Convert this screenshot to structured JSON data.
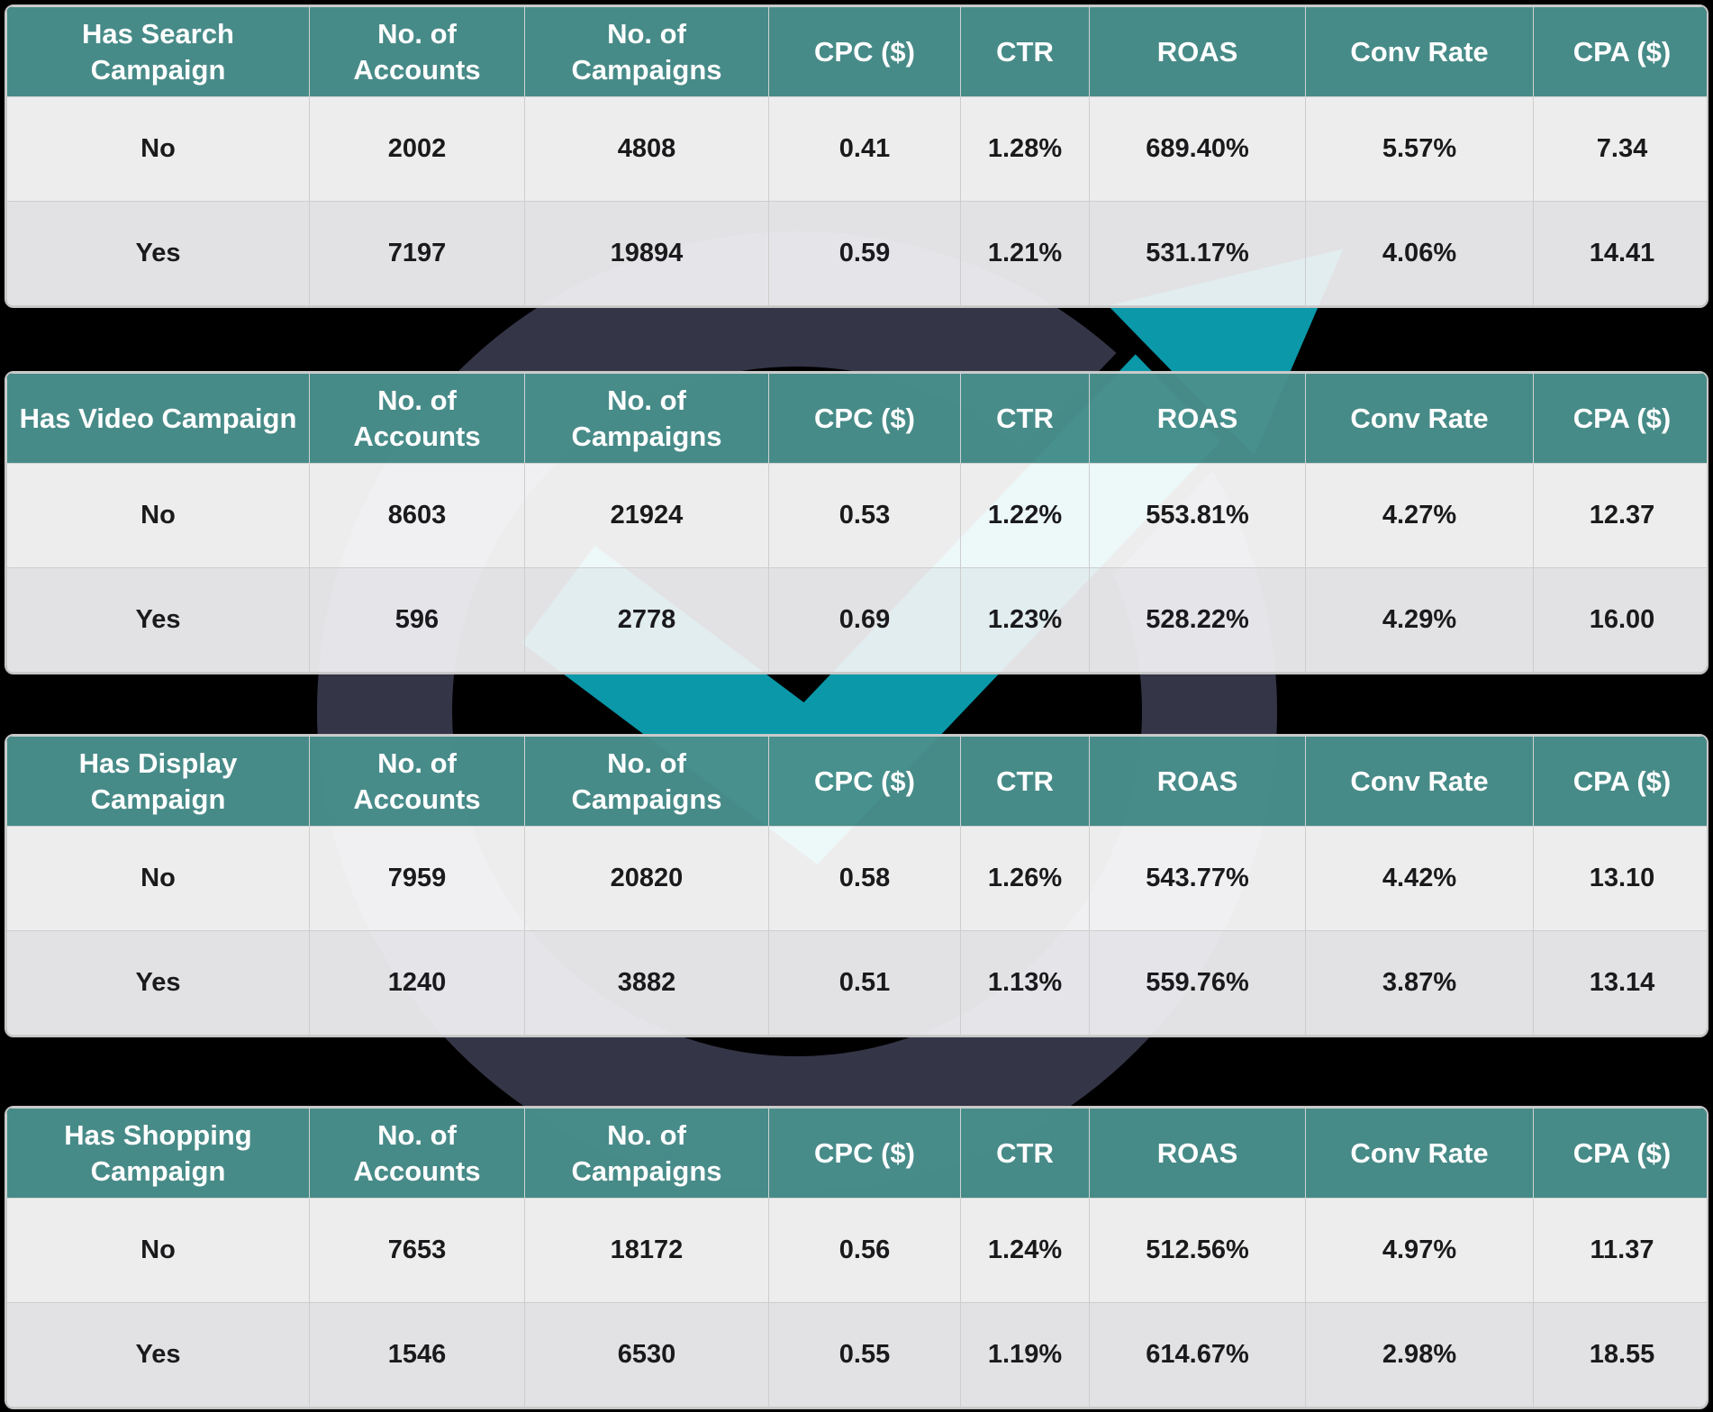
{
  "colors": {
    "page_background": "#000000",
    "header_bg": "#498f8c",
    "header_text": "#ffffff",
    "row_no_bg": "#ffffff",
    "row_yes_bg": "#f3f3f5",
    "cell_text": "#1a1a1c",
    "border": "#c7c7c7",
    "logo_ring": "#353548",
    "logo_arrow": "#0b98a9"
  },
  "watermark": {
    "name": "growth-check-arrow-logo"
  },
  "columns": [
    "No. of Accounts",
    "No. of Campaigns",
    "CPC ($)",
    "CTR",
    "ROAS",
    "Conv Rate",
    "CPA ($)"
  ],
  "tables": [
    {
      "id": "has-search-campaign",
      "title": "Has Search Campaign",
      "rows": [
        {
          "label": "No",
          "values": [
            "2002",
            "4808",
            "0.41",
            "1.28%",
            "689.40%",
            "5.57%",
            "7.34"
          ]
        },
        {
          "label": "Yes",
          "values": [
            "7197",
            "19894",
            "0.59",
            "1.21%",
            "531.17%",
            "4.06%",
            "14.41"
          ]
        }
      ]
    },
    {
      "id": "has-video-campaign",
      "title": "Has Video Campaign",
      "rows": [
        {
          "label": "No",
          "values": [
            "8603",
            "21924",
            "0.53",
            "1.22%",
            "553.81%",
            "4.27%",
            "12.37"
          ]
        },
        {
          "label": "Yes",
          "values": [
            "596",
            "2778",
            "0.69",
            "1.23%",
            "528.22%",
            "4.29%",
            "16.00"
          ]
        }
      ]
    },
    {
      "id": "has-display-campaign",
      "title": "Has Display Campaign",
      "rows": [
        {
          "label": "No",
          "values": [
            "7959",
            "20820",
            "0.58",
            "1.26%",
            "543.77%",
            "4.42%",
            "13.10"
          ]
        },
        {
          "label": "Yes",
          "values": [
            "1240",
            "3882",
            "0.51",
            "1.13%",
            "559.76%",
            "3.87%",
            "13.14"
          ]
        }
      ]
    },
    {
      "id": "has-shopping-campaign",
      "title": "Has Shopping Campaign",
      "rows": [
        {
          "label": "No",
          "values": [
            "7653",
            "18172",
            "0.56",
            "1.24%",
            "512.56%",
            "4.97%",
            "11.37"
          ]
        },
        {
          "label": "Yes",
          "values": [
            "1546",
            "6530",
            "0.55",
            "1.19%",
            "614.67%",
            "2.98%",
            "18.55"
          ]
        }
      ]
    }
  ],
  "chart_data": [
    {
      "type": "table",
      "title": "Has Search Campaign",
      "columns": [
        "Has Search Campaign",
        "No. of Accounts",
        "No. of Campaigns",
        "CPC ($)",
        "CTR",
        "ROAS",
        "Conv Rate",
        "CPA ($)"
      ],
      "rows": [
        [
          "No",
          2002,
          4808,
          0.41,
          "1.28%",
          "689.40%",
          "5.57%",
          7.34
        ],
        [
          "Yes",
          7197,
          19894,
          0.59,
          "1.21%",
          "531.17%",
          "4.06%",
          14.41
        ]
      ]
    },
    {
      "type": "table",
      "title": "Has Video Campaign",
      "columns": [
        "Has Video Campaign",
        "No. of Accounts",
        "No. of Campaigns",
        "CPC ($)",
        "CTR",
        "ROAS",
        "Conv Rate",
        "CPA ($)"
      ],
      "rows": [
        [
          "No",
          8603,
          21924,
          0.53,
          "1.22%",
          "553.81%",
          "4.27%",
          12.37
        ],
        [
          "Yes",
          596,
          2778,
          0.69,
          "1.23%",
          "528.22%",
          "4.29%",
          16.0
        ]
      ]
    },
    {
      "type": "table",
      "title": "Has Display Campaign",
      "columns": [
        "Has Display Campaign",
        "No. of Accounts",
        "No. of Campaigns",
        "CPC ($)",
        "CTR",
        "ROAS",
        "Conv Rate",
        "CPA ($)"
      ],
      "rows": [
        [
          "No",
          7959,
          20820,
          0.58,
          "1.26%",
          "543.77%",
          "4.42%",
          13.1
        ],
        [
          "Yes",
          1240,
          3882,
          0.51,
          "1.13%",
          "559.76%",
          "3.87%",
          13.14
        ]
      ]
    },
    {
      "type": "table",
      "title": "Has Shopping Campaign",
      "columns": [
        "Has Shopping Campaign",
        "No. of Accounts",
        "No. of Campaigns",
        "CPC ($)",
        "CTR",
        "ROAS",
        "Conv Rate",
        "CPA ($)"
      ],
      "rows": [
        [
          "No",
          7653,
          18172,
          0.56,
          "1.24%",
          "512.56%",
          "4.97%",
          11.37
        ],
        [
          "Yes",
          1546,
          6530,
          0.55,
          "1.19%",
          "614.67%",
          "2.98%",
          18.55
        ]
      ]
    }
  ]
}
